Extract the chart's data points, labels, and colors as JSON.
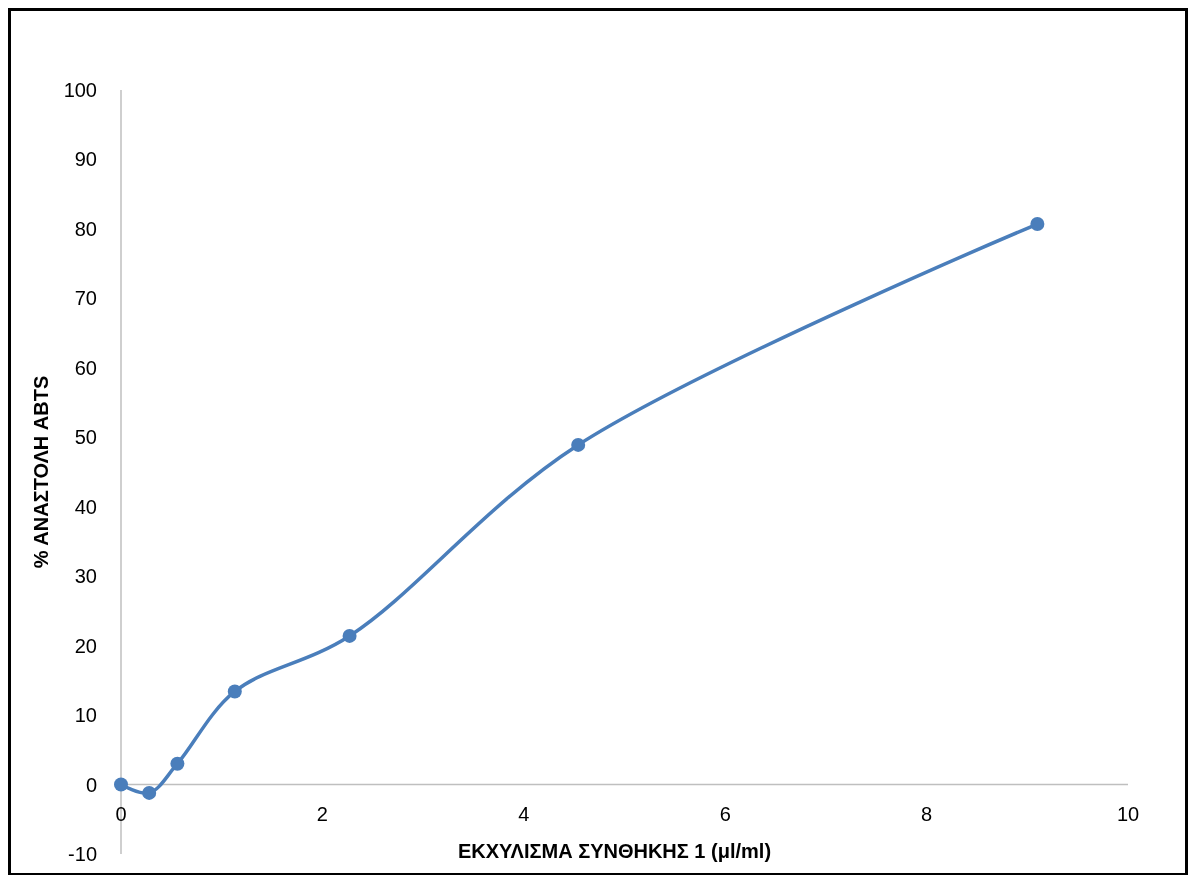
{
  "chart_data": {
    "type": "line",
    "xlabel": "ΕΚΧΥΛΙΣΜΑ ΣΥΝΘΗΚΗΣ 1 (μl/ml)",
    "ylabel": "% ΑΝΑΣΤΟΛΗ ABTS",
    "x": [
      0,
      0.28,
      0.56,
      1.13,
      2.27,
      4.54,
      9.1
    ],
    "series": [
      {
        "color": "#4a7ebb",
        "values": [
          0,
          -1.2,
          3,
          13.4,
          21.4,
          48.9,
          80.7
        ]
      }
    ],
    "xlim": [
      0,
      10
    ],
    "xticks": [
      0,
      2,
      4,
      6,
      8,
      10
    ],
    "ylim": [
      -10,
      100
    ],
    "yticks": [
      -10,
      0,
      10,
      20,
      30,
      40,
      50,
      60,
      70,
      80,
      90,
      100
    ],
    "grid": false,
    "marker": "circle",
    "line_style": "solid"
  }
}
